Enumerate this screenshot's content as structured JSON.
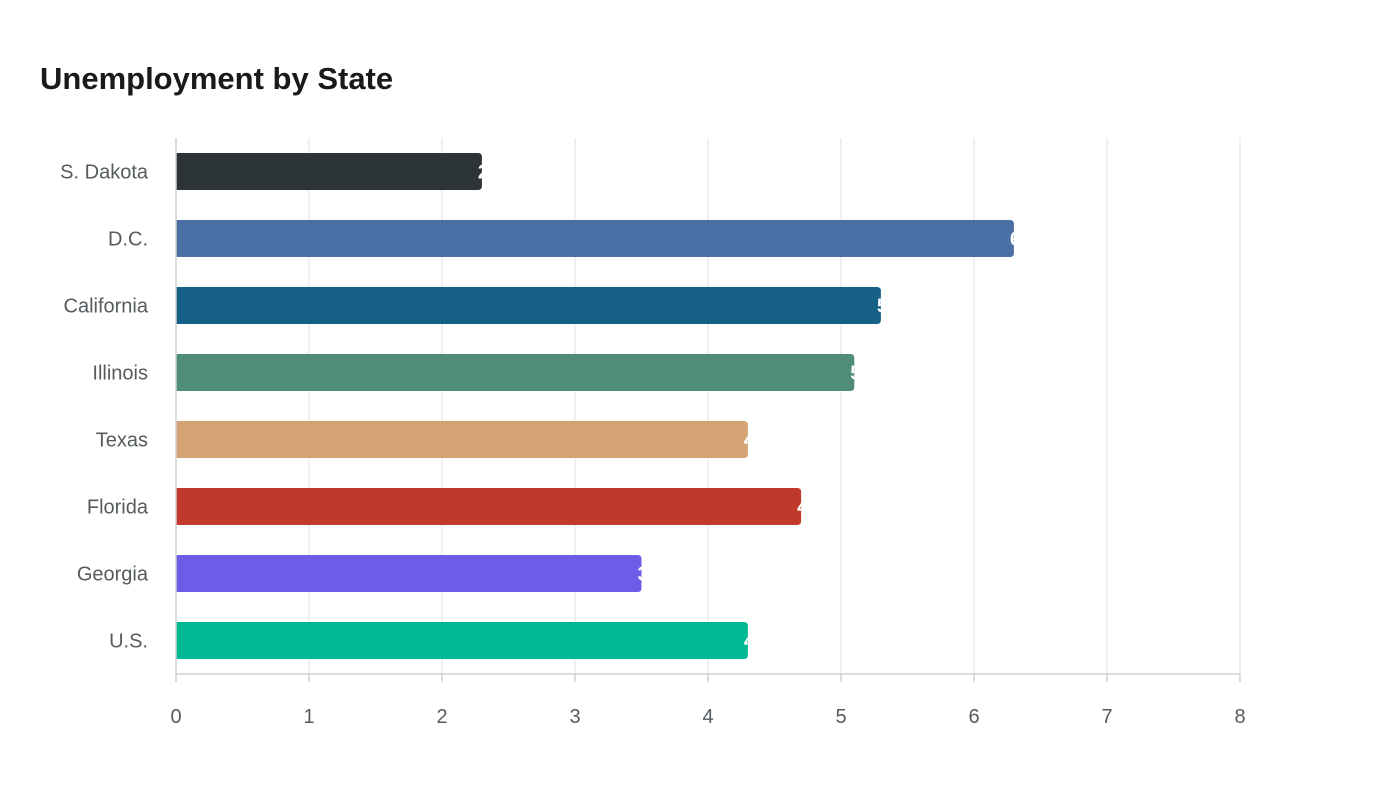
{
  "chart_data": {
    "type": "bar",
    "orientation": "horizontal",
    "title": "Unemployment by State",
    "xlabel": "",
    "ylabel": "",
    "categories": [
      "S. Dakota",
      "D.C.",
      "California",
      "Illinois",
      "Texas",
      "Florida",
      "Georgia",
      "U.S."
    ],
    "values": [
      2.3,
      6.3,
      5.3,
      5.1,
      4.3,
      4.7,
      3.5,
      4.3
    ],
    "colors": [
      "#2d3436",
      "#4a6fa5",
      "#166088",
      "#4f8d7a",
      "#d4a373",
      "#c0392b",
      "#6c5ce7",
      "#00b894"
    ],
    "xlim": [
      0,
      8
    ],
    "x_ticks": [
      "0",
      "1",
      "2",
      "3",
      "4",
      "5",
      "6",
      "7",
      "8"
    ],
    "grid": true,
    "legend": "none",
    "data_labels": true
  }
}
